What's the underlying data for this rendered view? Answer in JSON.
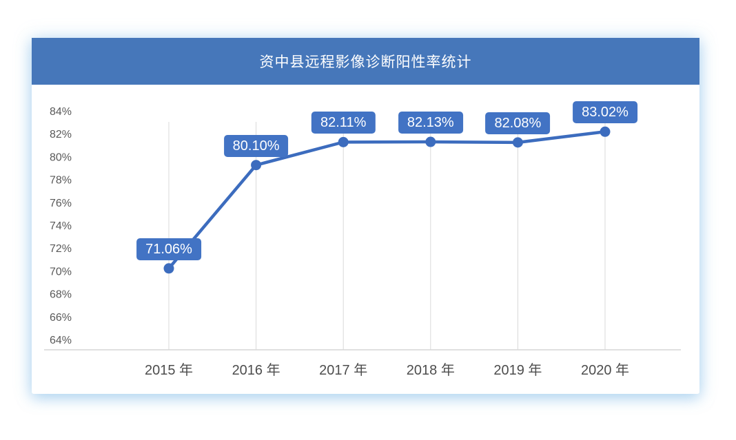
{
  "header": {
    "title": "资中县远程影像诊断阳性率统计"
  },
  "chart_data": {
    "type": "line",
    "title": "资中县远程影像诊断阳性率统计",
    "categories": [
      "2015 年",
      "2016 年",
      "2017 年",
      "2018 年",
      "2019 年",
      "2020 年"
    ],
    "values": [
      71.06,
      80.1,
      82.11,
      82.13,
      82.08,
      83.02
    ],
    "data_labels": [
      "71.06%",
      "80.10%",
      "82.11%",
      "82.13%",
      "82.08%",
      "83.02%"
    ],
    "xlabel": "",
    "ylabel": "",
    "ylim": [
      64,
      84
    ],
    "ytick_step": 2,
    "ytick_labels": [
      "84%",
      "82%",
      "80%",
      "78%",
      "76%",
      "74%",
      "72%",
      "70%",
      "68%",
      "66%",
      "64%"
    ],
    "grid": "vertical-only",
    "legend": "none",
    "colors": {
      "header_bg": "#4677ba",
      "line": "#3c6cbe",
      "marker": "#3c6cbe",
      "data_label_bg": "#4273c4",
      "data_label_text": "#ffffff",
      "gridline": "#d9d9d9",
      "axis_line": "#d6d6d6",
      "ytick_text": "#595959",
      "xtick_text": "#4d4d4d"
    }
  }
}
